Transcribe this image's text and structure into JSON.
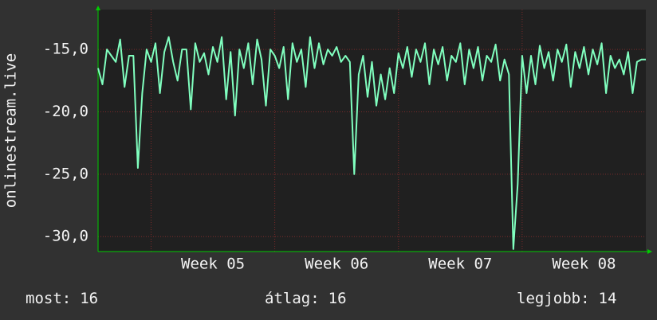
{
  "chart_data": {
    "type": "line",
    "y_label": "onlinestream.live",
    "x": [
      0,
      0.25,
      0.5,
      0.75,
      1,
      1.25,
      1.5,
      1.75,
      2,
      2.25,
      2.5,
      2.75,
      3,
      3.25,
      3.5,
      3.75,
      4,
      4.25,
      4.5,
      4.75,
      5,
      5.25,
      5.5,
      5.75,
      6,
      6.25,
      6.5,
      6.75,
      7,
      7.25,
      7.5,
      7.75,
      8,
      8.25,
      8.5,
      8.75,
      9,
      9.25,
      9.5,
      9.75,
      10,
      10.25,
      10.5,
      10.75,
      11,
      11.25,
      11.5,
      11.75,
      12,
      12.25,
      12.5,
      12.75,
      13,
      13.25,
      13.5,
      13.75,
      14,
      14.25,
      14.5,
      14.75,
      15,
      15.25,
      15.5,
      15.75,
      16,
      16.25,
      16.5,
      16.75,
      17,
      17.25,
      17.5,
      17.75,
      18,
      18.25,
      18.5,
      18.75,
      19,
      19.25,
      19.5,
      19.75,
      20,
      20.25,
      20.5,
      20.75,
      21,
      21.25,
      21.5,
      21.75,
      22,
      22.25,
      22.5,
      22.75,
      23,
      23.25,
      23.5,
      23.75,
      24,
      24.25,
      24.5,
      24.75,
      25,
      25.25,
      25.5,
      25.75,
      26,
      26.25,
      26.5,
      26.75,
      27,
      27.25,
      27.5,
      27.75,
      28,
      28.25,
      28.5,
      28.75,
      29,
      29.25,
      29.5,
      29.75,
      30,
      30.25,
      30.5,
      30.75,
      31
    ],
    "series": [
      {
        "color": "#80ffbf",
        "values": [
          -16.5,
          -17.8,
          -15,
          -15.5,
          -16,
          -14.2,
          -18,
          -15.5,
          -15.5,
          -24.5,
          -18.5,
          -15,
          -16,
          -14.5,
          -18.5,
          -15.2,
          -14,
          -16,
          -17.5,
          -15,
          -15,
          -19.8,
          -14.5,
          -16,
          -15.3,
          -17,
          -14.8,
          -16,
          -14,
          -19,
          -15.2,
          -20.3,
          -15,
          -16.5,
          -14.5,
          -17.8,
          -14.2,
          -15.8,
          -19.5,
          -15,
          -15.5,
          -16.5,
          -14.8,
          -19,
          -14.5,
          -16,
          -15,
          -18,
          -14,
          -16.5,
          -14.5,
          -16.2,
          -15,
          -15.5,
          -14.8,
          -16,
          -15.5,
          -16,
          -25,
          -17,
          -15.5,
          -18.8,
          -16,
          -19.5,
          -17,
          -19,
          -16.5,
          -18.5,
          -15.3,
          -16.5,
          -14.8,
          -17.2,
          -15,
          -16,
          -14.5,
          -17.8,
          -15,
          -16.2,
          -14.8,
          -17.5,
          -15.5,
          -16,
          -14.5,
          -17.8,
          -15,
          -16.5,
          -14.8,
          -17.5,
          -15.5,
          -16,
          -14.6,
          -17.5,
          -15.8,
          -17,
          -31,
          -25.8,
          -15.5,
          -18.5,
          -15.5,
          -17.8,
          -14.7,
          -16.5,
          -15.2,
          -17.5,
          -15,
          -16,
          -14.6,
          -18,
          -15.2,
          -16.5,
          -14.8,
          -17,
          -15,
          -16.2,
          -14.5,
          -18.5,
          -15.5,
          -16.5,
          -15.8,
          -17,
          -15.2,
          -18.5,
          -16,
          -15.8,
          -15.8
        ]
      }
    ],
    "xlim": [
      0,
      31
    ],
    "xticks": [
      {
        "value": 6.5,
        "label": "Week 05"
      },
      {
        "value": 13.5,
        "label": "Week 06"
      },
      {
        "value": 20.5,
        "label": "Week 07"
      },
      {
        "value": 27.5,
        "label": "Week 08"
      }
    ],
    "xgrid": [
      3,
      10,
      17,
      24
    ],
    "ylim": [
      -31.2,
      -11.8
    ],
    "yticks": [
      {
        "value": -15,
        "label": "-15,0"
      },
      {
        "value": -20,
        "label": "-20,0"
      },
      {
        "value": -25,
        "label": "-25,0"
      },
      {
        "value": -30,
        "label": "-30,0"
      }
    ],
    "grid": true,
    "stats": [
      {
        "label": "most:",
        "value": 16
      },
      {
        "label": "átlag:",
        "value": 16
      },
      {
        "label": "legjobb:",
        "value": 14
      }
    ]
  }
}
